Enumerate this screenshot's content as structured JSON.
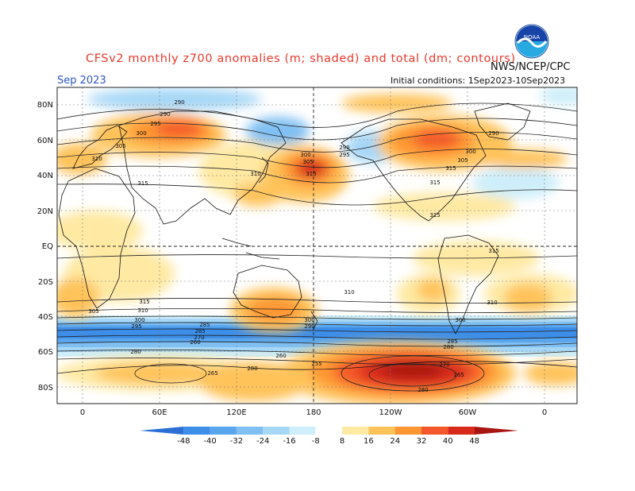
{
  "header": {
    "title": "CFSv2 monthly z700 anomalies (m; shaded) and total (dm; contours)",
    "month": "Sep 2023",
    "agency": "NWS/NCEP/CPC",
    "initial_conditions": "Initial conditions: 1Sep2023-10Sep2023",
    "logo_text": "NOAA"
  },
  "axes": {
    "lat_labels": [
      "80N",
      "60N",
      "40N",
      "20N",
      "EQ",
      "20S",
      "40S",
      "60S",
      "80S"
    ],
    "lon_labels": [
      "0",
      "60E",
      "120E",
      "180",
      "120W",
      "60W",
      "0"
    ]
  },
  "colorbar": {
    "labels": [
      "-48",
      "-40",
      "-32",
      "-24",
      "-16",
      "-8",
      "8",
      "16",
      "24",
      "32",
      "40",
      "48"
    ],
    "colors": [
      "#2b6fd6",
      "#3d8ee8",
      "#5aa6ee",
      "#7fbff2",
      "#a6d7f6",
      "#cdeefa",
      "#ffffff",
      "#ffe9a3",
      "#ffc35a",
      "#ff9633",
      "#f4582a",
      "#d82a1a",
      "#a81410"
    ]
  },
  "contour_labels": [
    "295",
    "290",
    "290",
    "300",
    "305",
    "310",
    "315",
    "310",
    "300",
    "305",
    "315",
    "290",
    "295",
    "315",
    "315",
    "315",
    "300",
    "290",
    "305",
    "310",
    "310",
    "300",
    "305",
    "295",
    "285",
    "270",
    "260",
    "280",
    "260",
    "265",
    "280",
    "285",
    "290",
    "300",
    "315",
    "310",
    "315",
    "255",
    "270",
    "265",
    "280",
    "280",
    "285",
    "300"
  ],
  "colors": {
    "title": "#e8392c",
    "month": "#2f55c8",
    "coast": "#111111"
  },
  "icons": {
    "logo": "noaa-logo-icon"
  }
}
